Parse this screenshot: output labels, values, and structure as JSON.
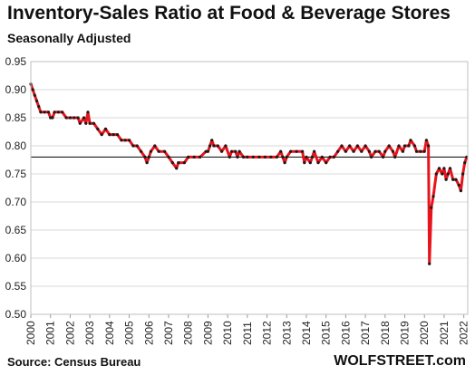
{
  "header": {
    "title": "Inventory-Sales  Ratio at Food & Beverage Stores",
    "subtitle": "Seasonally Adjusted"
  },
  "footer": {
    "source": "Source: Census Bureau",
    "brand": "WOLFSTREET.com"
  },
  "colors": {
    "line": "#e8141c",
    "marker": "#1a1a1a",
    "reference": "#000000",
    "grid": "#d9d9d9"
  },
  "chart_data": {
    "type": "line",
    "title": "Inventory-Sales  Ratio at Food & Beverage Stores",
    "subtitle": "Seasonally Adjusted",
    "xlabel": "",
    "ylabel": "",
    "ylim": [
      0.5,
      0.95
    ],
    "xlim": [
      2000,
      2022.2
    ],
    "grid": true,
    "y_ticks": [
      "0.95",
      "0.90",
      "0.85",
      "0.80",
      "0.75",
      "0.70",
      "0.65",
      "0.60",
      "0.55",
      "0.50"
    ],
    "x_ticks": [
      "2000",
      "2001",
      "2002",
      "2003",
      "2004",
      "2005",
      "2006",
      "2007",
      "2008",
      "2009",
      "2010",
      "2011",
      "2012",
      "2013",
      "2014",
      "2015",
      "2016",
      "2017",
      "2018",
      "2019",
      "2020",
      "2021",
      "2022"
    ],
    "reference_line": 0.78,
    "series": [
      {
        "points": [
          [
            2000.0,
            0.91
          ],
          [
            2000.1,
            0.9
          ],
          [
            2000.2,
            0.89
          ],
          [
            2000.3,
            0.88
          ],
          [
            2000.4,
            0.87
          ],
          [
            2000.5,
            0.86
          ],
          [
            2000.7,
            0.86
          ],
          [
            2000.9,
            0.86
          ],
          [
            2001.0,
            0.85
          ],
          [
            2001.1,
            0.85
          ],
          [
            2001.2,
            0.86
          ],
          [
            2001.4,
            0.86
          ],
          [
            2001.6,
            0.86
          ],
          [
            2001.8,
            0.85
          ],
          [
            2002.0,
            0.85
          ],
          [
            2002.2,
            0.85
          ],
          [
            2002.4,
            0.85
          ],
          [
            2002.5,
            0.84
          ],
          [
            2002.7,
            0.85
          ],
          [
            2002.8,
            0.84
          ],
          [
            2002.9,
            0.86
          ],
          [
            2003.0,
            0.84
          ],
          [
            2003.2,
            0.84
          ],
          [
            2003.4,
            0.83
          ],
          [
            2003.6,
            0.82
          ],
          [
            2003.8,
            0.83
          ],
          [
            2004.0,
            0.82
          ],
          [
            2004.2,
            0.82
          ],
          [
            2004.4,
            0.82
          ],
          [
            2004.6,
            0.81
          ],
          [
            2004.8,
            0.81
          ],
          [
            2005.0,
            0.81
          ],
          [
            2005.2,
            0.8
          ],
          [
            2005.4,
            0.8
          ],
          [
            2005.6,
            0.79
          ],
          [
            2005.8,
            0.78
          ],
          [
            2005.9,
            0.77
          ],
          [
            2006.0,
            0.78
          ],
          [
            2006.1,
            0.79
          ],
          [
            2006.3,
            0.8
          ],
          [
            2006.5,
            0.79
          ],
          [
            2006.8,
            0.79
          ],
          [
            2007.0,
            0.78
          ],
          [
            2007.2,
            0.77
          ],
          [
            2007.4,
            0.76
          ],
          [
            2007.5,
            0.77
          ],
          [
            2007.8,
            0.77
          ],
          [
            2008.0,
            0.78
          ],
          [
            2008.3,
            0.78
          ],
          [
            2008.6,
            0.78
          ],
          [
            2008.9,
            0.79
          ],
          [
            2009.0,
            0.79
          ],
          [
            2009.1,
            0.8
          ],
          [
            2009.2,
            0.81
          ],
          [
            2009.3,
            0.8
          ],
          [
            2009.5,
            0.8
          ],
          [
            2009.7,
            0.79
          ],
          [
            2009.9,
            0.8
          ],
          [
            2010.1,
            0.78
          ],
          [
            2010.2,
            0.79
          ],
          [
            2010.4,
            0.79
          ],
          [
            2010.5,
            0.78
          ],
          [
            2010.6,
            0.79
          ],
          [
            2010.8,
            0.78
          ],
          [
            2011.0,
            0.78
          ],
          [
            2011.3,
            0.78
          ],
          [
            2011.6,
            0.78
          ],
          [
            2011.9,
            0.78
          ],
          [
            2012.2,
            0.78
          ],
          [
            2012.5,
            0.78
          ],
          [
            2012.7,
            0.79
          ],
          [
            2012.8,
            0.78
          ],
          [
            2012.9,
            0.77
          ],
          [
            2013.0,
            0.78
          ],
          [
            2013.2,
            0.79
          ],
          [
            2013.5,
            0.79
          ],
          [
            2013.8,
            0.79
          ],
          [
            2013.9,
            0.77
          ],
          [
            2014.0,
            0.78
          ],
          [
            2014.2,
            0.77
          ],
          [
            2014.3,
            0.78
          ],
          [
            2014.4,
            0.79
          ],
          [
            2014.6,
            0.77
          ],
          [
            2014.8,
            0.78
          ],
          [
            2015.0,
            0.77
          ],
          [
            2015.2,
            0.78
          ],
          [
            2015.4,
            0.78
          ],
          [
            2015.6,
            0.79
          ],
          [
            2015.8,
            0.8
          ],
          [
            2016.0,
            0.79
          ],
          [
            2016.2,
            0.8
          ],
          [
            2016.4,
            0.79
          ],
          [
            2016.6,
            0.8
          ],
          [
            2016.8,
            0.79
          ],
          [
            2017.0,
            0.8
          ],
          [
            2017.2,
            0.79
          ],
          [
            2017.3,
            0.78
          ],
          [
            2017.5,
            0.79
          ],
          [
            2017.7,
            0.79
          ],
          [
            2017.9,
            0.78
          ],
          [
            2018.0,
            0.79
          ],
          [
            2018.2,
            0.8
          ],
          [
            2018.4,
            0.79
          ],
          [
            2018.5,
            0.78
          ],
          [
            2018.7,
            0.8
          ],
          [
            2018.9,
            0.79
          ],
          [
            2019.0,
            0.8
          ],
          [
            2019.2,
            0.8
          ],
          [
            2019.3,
            0.81
          ],
          [
            2019.5,
            0.8
          ],
          [
            2019.6,
            0.79
          ],
          [
            2019.8,
            0.79
          ],
          [
            2020.0,
            0.79
          ],
          [
            2020.1,
            0.81
          ],
          [
            2020.2,
            0.8
          ],
          [
            2020.25,
            0.59
          ],
          [
            2020.35,
            0.69
          ],
          [
            2020.45,
            0.71
          ],
          [
            2020.6,
            0.75
          ],
          [
            2020.75,
            0.76
          ],
          [
            2020.9,
            0.75
          ],
          [
            2021.0,
            0.76
          ],
          [
            2021.1,
            0.74
          ],
          [
            2021.2,
            0.75
          ],
          [
            2021.3,
            0.76
          ],
          [
            2021.45,
            0.74
          ],
          [
            2021.6,
            0.74
          ],
          [
            2021.75,
            0.73
          ],
          [
            2021.85,
            0.72
          ],
          [
            2021.95,
            0.75
          ],
          [
            2022.05,
            0.77
          ],
          [
            2022.15,
            0.78
          ]
        ]
      }
    ]
  }
}
